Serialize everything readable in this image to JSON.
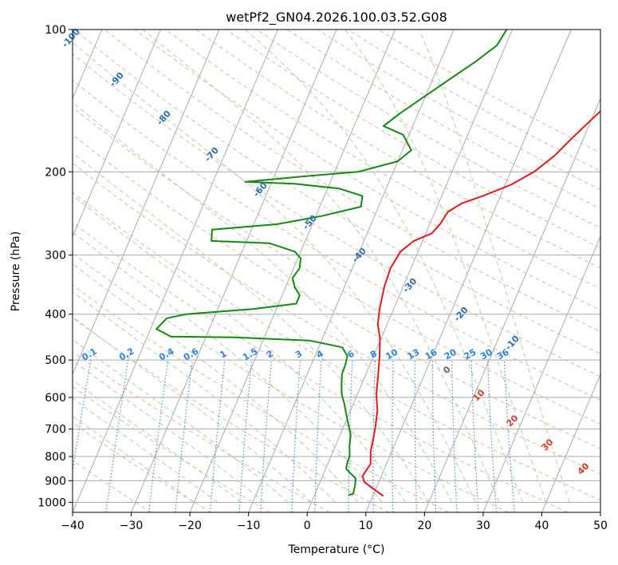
{
  "chart_data": {
    "type": "line",
    "title": "wetPf2_GN04.2026.100.03.52.G08",
    "xlabel": "Temperature (°C)",
    "ylabel": "Pressure (hPa)",
    "xlim": [
      -40,
      50
    ],
    "ylim": [
      1050,
      100
    ],
    "y_scale": "log",
    "grid": true,
    "x_ticks": [
      -40,
      -30,
      -20,
      -10,
      0,
      10,
      20,
      30,
      40,
      50
    ],
    "y_ticks": [
      1000,
      900,
      800,
      700,
      600,
      500,
      400,
      300,
      200,
      100
    ],
    "colors": {
      "temperature": "#e31a1c",
      "dewpoint": "#138a13",
      "isotherm": "#aaaaaa",
      "dry_adiabat": "#f4a582",
      "moist_adiabat": "#9fd49f",
      "mixing_ratio": "#3a86d6",
      "mixing_label": "#2b83e0",
      "dry_label": "#d43d2f",
      "moist_label": "#2b6fae"
    },
    "series": [
      {
        "id": "temperature",
        "values": [
          [
            11.8,
            970
          ],
          [
            9.5,
            935
          ],
          [
            7.5,
            905
          ],
          [
            6.8,
            880
          ],
          [
            7.0,
            860
          ],
          [
            7.3,
            830
          ],
          [
            6.4,
            780
          ],
          [
            5.9,
            730
          ],
          [
            5.4,
            690
          ],
          [
            4.6,
            640
          ],
          [
            3.2,
            590
          ],
          [
            2.2,
            540
          ],
          [
            1.0,
            490
          ],
          [
            -0.2,
            450
          ],
          [
            -1.6,
            420
          ],
          [
            -2.4,
            390
          ],
          [
            -3.2,
            350
          ],
          [
            -3.5,
            320
          ],
          [
            -3.0,
            295
          ],
          [
            -1.5,
            280
          ],
          [
            1.0,
            270
          ],
          [
            1.8,
            257
          ],
          [
            2.2,
            243
          ],
          [
            4.0,
            233
          ],
          [
            7.0,
            225
          ],
          [
            11.0,
            213
          ],
          [
            14.0,
            200
          ],
          [
            16.3,
            185
          ],
          [
            18.0,
            170
          ],
          [
            20.0,
            155
          ],
          [
            22.0,
            142
          ],
          [
            24.5,
            130
          ],
          [
            25.5,
            122
          ],
          [
            24.2,
            115
          ],
          [
            24.2,
            110
          ],
          [
            26.5,
            100
          ]
        ]
      },
      {
        "id": "dewpoint",
        "values": [
          [
            5.8,
            965
          ],
          [
            6.5,
            960
          ],
          [
            6.2,
            920
          ],
          [
            5.8,
            890
          ],
          [
            3.5,
            850
          ],
          [
            3.2,
            820
          ],
          [
            3.2,
            800
          ],
          [
            2.4,
            760
          ],
          [
            1.8,
            720
          ],
          [
            0.5,
            680
          ],
          [
            -0.5,
            650
          ],
          [
            -1.5,
            620
          ],
          [
            -2.7,
            590
          ],
          [
            -3.5,
            560
          ],
          [
            -4.1,
            535
          ],
          [
            -4.2,
            510
          ],
          [
            -4.5,
            490
          ],
          [
            -6.0,
            470
          ],
          [
            -12.0,
            455
          ],
          [
            -25.0,
            448
          ],
          [
            -36.0,
            446
          ],
          [
            -39.0,
            430
          ],
          [
            -38.0,
            408
          ],
          [
            -35.0,
            400
          ],
          [
            -24.0,
            390
          ],
          [
            -17.0,
            380
          ],
          [
            -17.0,
            365
          ],
          [
            -18.5,
            350
          ],
          [
            -19.5,
            335
          ],
          [
            -19.0,
            320
          ],
          [
            -19.5,
            305
          ],
          [
            -21.0,
            295
          ],
          [
            -26.0,
            283
          ],
          [
            -36.0,
            280
          ],
          [
            -36.7,
            265
          ],
          [
            -26.0,
            258
          ],
          [
            -19.0,
            248
          ],
          [
            -13.0,
            237
          ],
          [
            -13.5,
            225
          ],
          [
            -18.0,
            217
          ],
          [
            -26.0,
            212
          ],
          [
            -34.5,
            210
          ],
          [
            -26.0,
            205
          ],
          [
            -16.0,
            200
          ],
          [
            -10.0,
            190
          ],
          [
            -8.5,
            180
          ],
          [
            -11.0,
            167
          ],
          [
            -15.0,
            160
          ],
          [
            -13.0,
            150
          ],
          [
            -10.0,
            138
          ],
          [
            -7.0,
            127
          ],
          [
            -4.0,
            117
          ],
          [
            -1.5,
            108
          ],
          [
            -1.0,
            100
          ]
        ]
      }
    ],
    "isotherm_labels": {
      "moist": [
        "-100",
        "-90",
        "-80",
        "-70",
        "-60",
        "-50",
        "-40",
        "-30",
        "-20",
        "-10"
      ],
      "moist_anchor_temps": [
        -100,
        -90,
        -80,
        -70,
        -60,
        -50,
        -40,
        -30,
        -20,
        -10
      ],
      "dry_zero": "0",
      "dry": [
        "10",
        "20",
        "30",
        "40"
      ],
      "dry_anchor_temps": [
        10,
        20,
        30,
        40
      ],
      "mixing": [
        "0.1",
        "0.2",
        "0.4",
        "0.6",
        "1",
        "1.5",
        "2",
        "3",
        "4",
        "6",
        "8",
        "10",
        "13",
        "16",
        "20",
        "25",
        "30",
        "36"
      ],
      "mixing_values": [
        0.1,
        0.2,
        0.4,
        0.6,
        1,
        1.5,
        2,
        3,
        4,
        6,
        8,
        10,
        13,
        16,
        20,
        25,
        30,
        36
      ]
    }
  }
}
